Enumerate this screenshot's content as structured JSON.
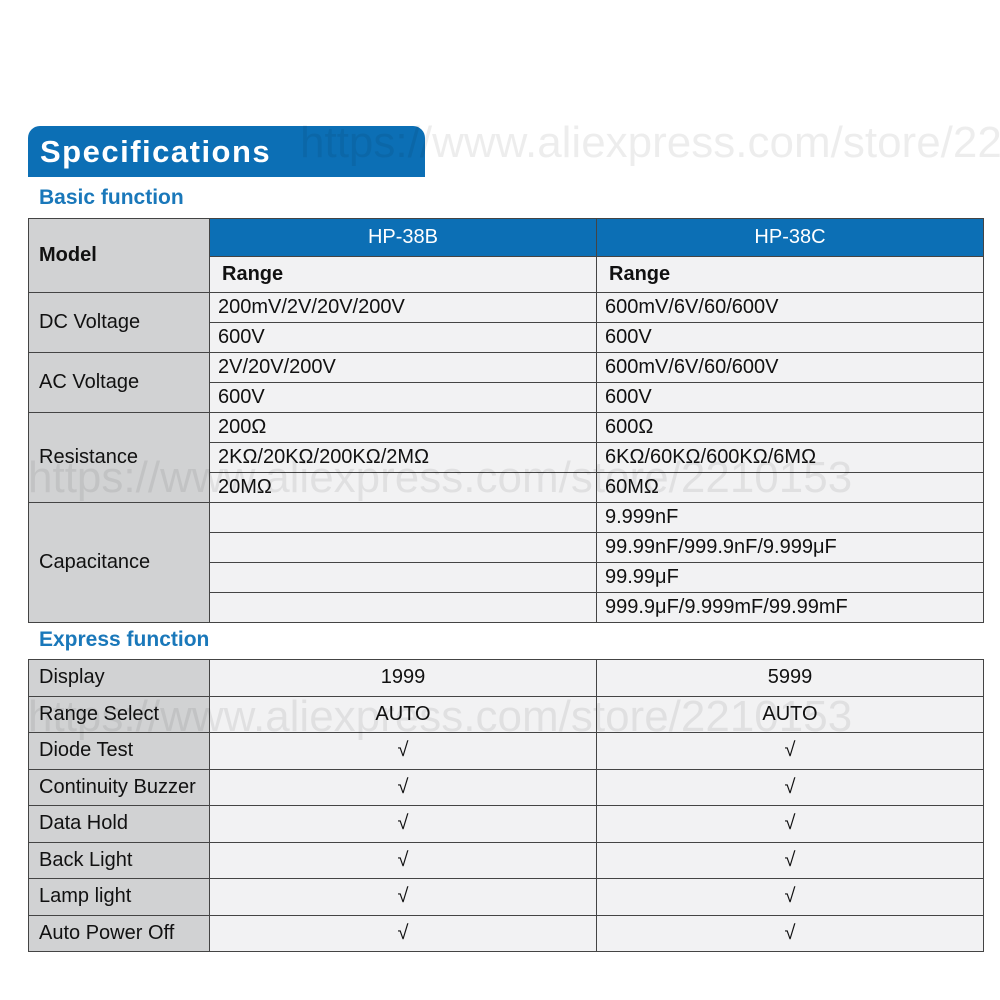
{
  "watermark": "https://www.aliexpress.com/store/2210153",
  "title": "Specifications",
  "basic": {
    "heading": "Basic function",
    "model_label": "Model",
    "models": [
      "HP-38B",
      "HP-38C"
    ],
    "range_label": "Range",
    "groups": [
      {
        "label": "DC Voltage",
        "rows": [
          [
            "200mV/2V/20V/200V",
            "600mV/6V/60/600V"
          ],
          [
            "600V",
            "600V"
          ]
        ]
      },
      {
        "label": "AC Voltage",
        "rows": [
          [
            "2V/20V/200V",
            "600mV/6V/60/600V"
          ],
          [
            "600V",
            "600V"
          ]
        ]
      },
      {
        "label": "Resistance",
        "rows": [
          [
            "200Ω",
            "600Ω"
          ],
          [
            "2KΩ/20KΩ/200KΩ/2MΩ",
            "6KΩ/60KΩ/600KΩ/6MΩ"
          ],
          [
            "20MΩ",
            "60MΩ"
          ]
        ]
      },
      {
        "label": "Capacitance",
        "rows": [
          [
            "",
            "9.999nF"
          ],
          [
            "",
            "99.99nF/999.9nF/9.999μF"
          ],
          [
            "",
            "99.99μF"
          ],
          [
            "",
            "999.9μF/9.999mF/99.99mF"
          ]
        ]
      }
    ]
  },
  "express": {
    "heading": "Express function",
    "rows": [
      [
        "Display",
        "1999",
        "5999"
      ],
      [
        "Range Select",
        "AUTO",
        "AUTO"
      ],
      [
        "Diode Test",
        "√",
        "√"
      ],
      [
        "Continuity Buzzer",
        "√",
        "√"
      ],
      [
        "Data Hold",
        "√",
        "√"
      ],
      [
        "Back Light",
        "√",
        "√"
      ],
      [
        "Lamp light",
        "√",
        "√"
      ],
      [
        "Auto Power Off",
        "√",
        "√"
      ]
    ]
  },
  "colors": {
    "accent": "#0c6fb5",
    "heading": "#1a78ba",
    "label_bg": "#d1d2d3",
    "cell_bg": "#f2f2f3"
  }
}
